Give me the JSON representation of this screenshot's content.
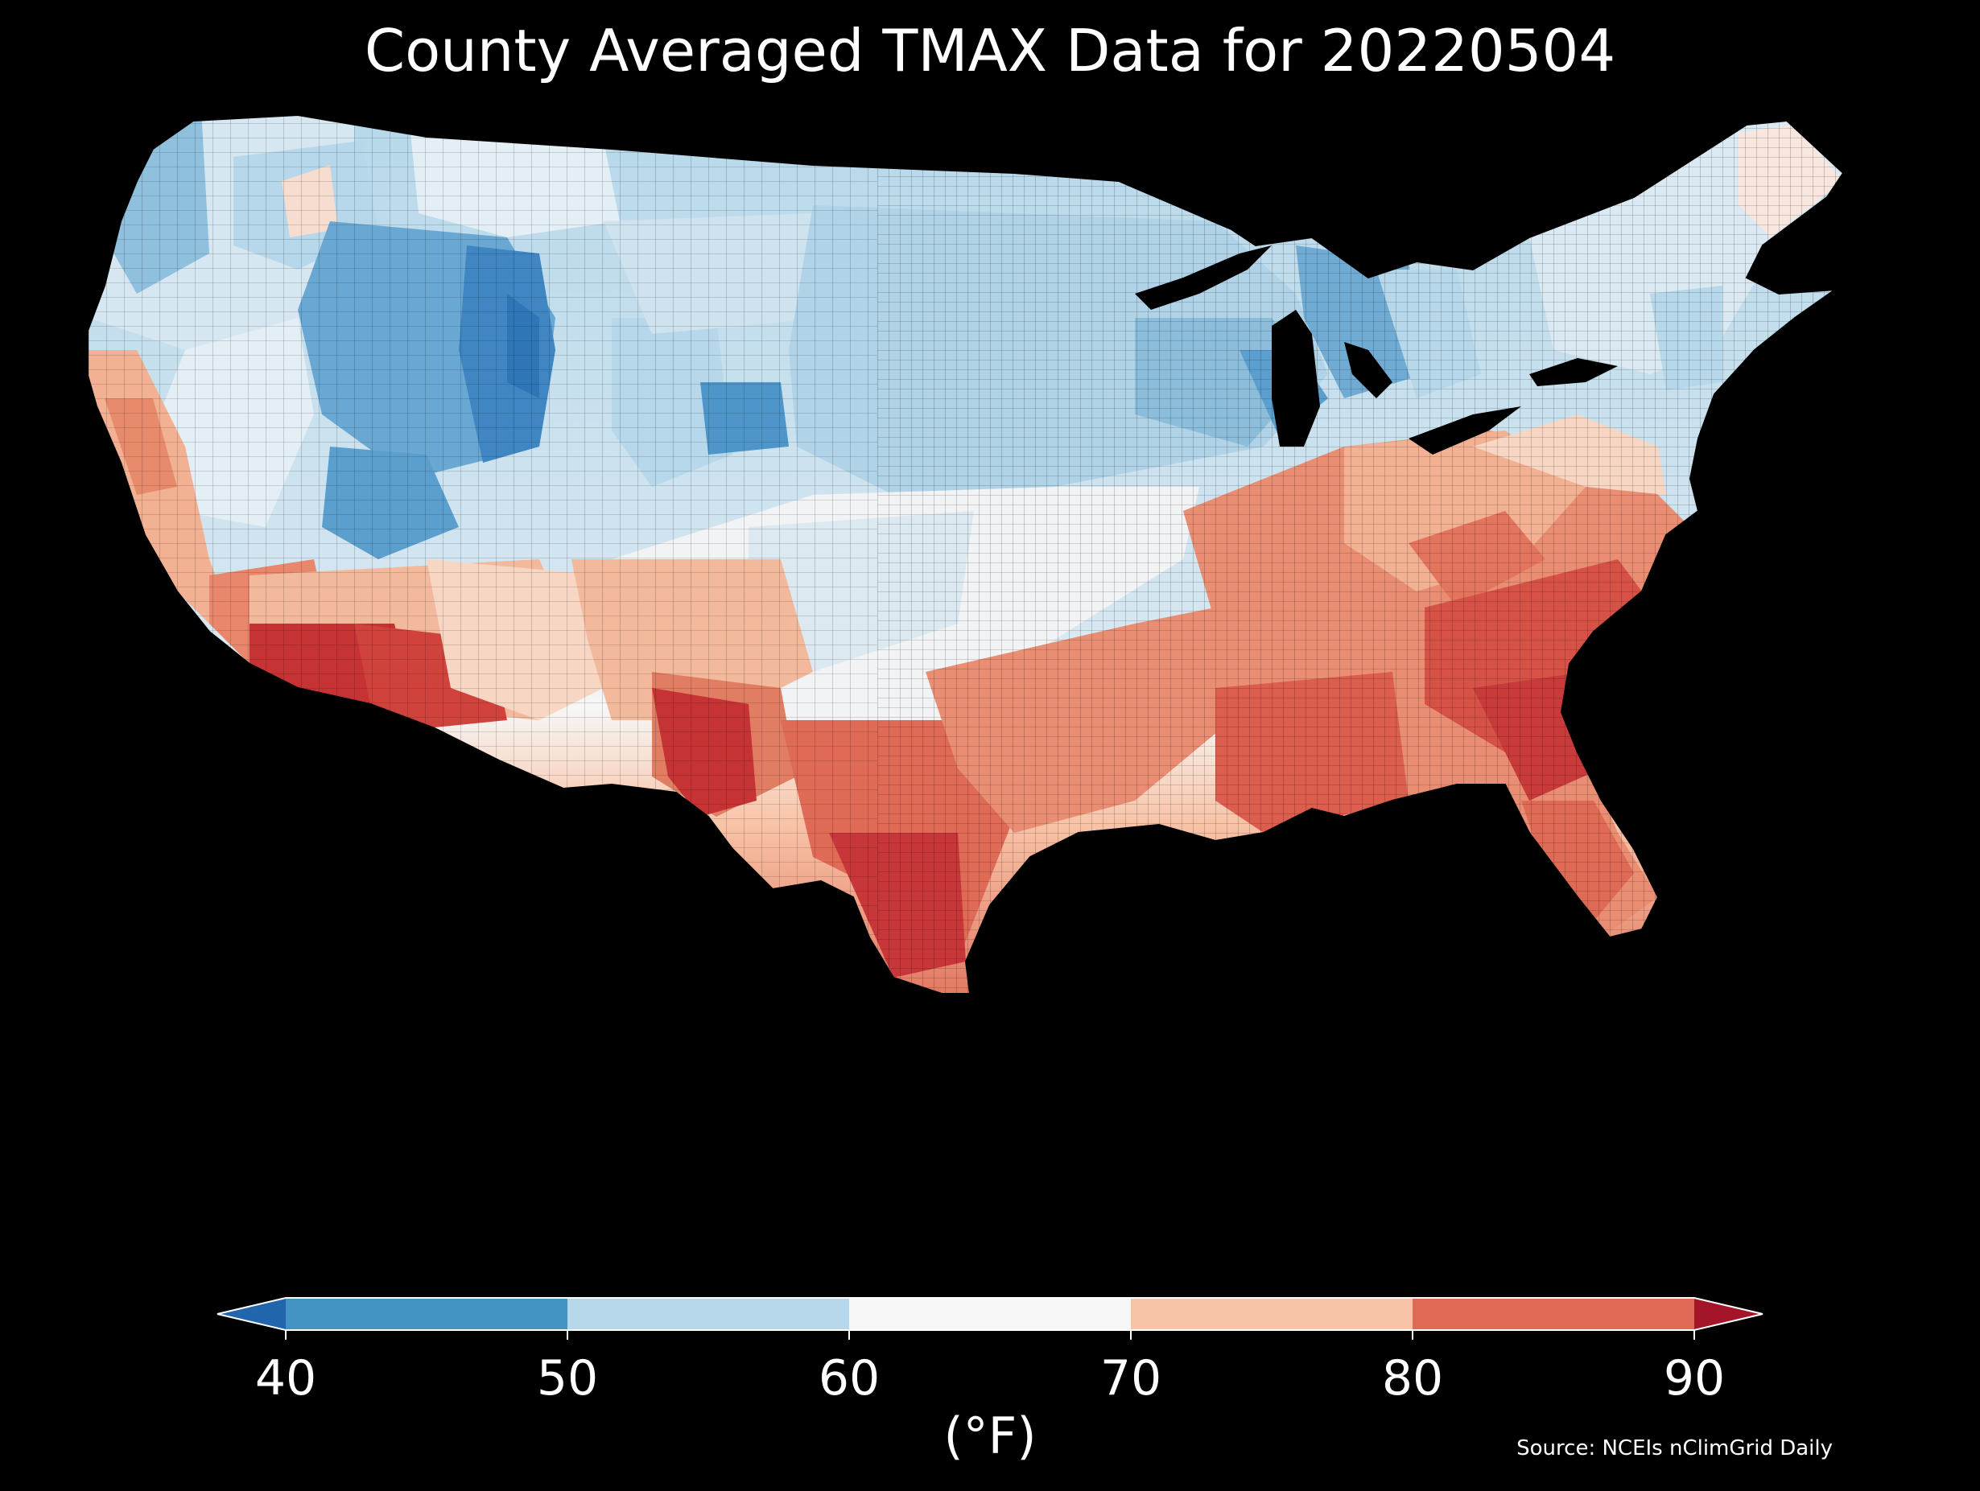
{
  "title": "County Averaged TMAX Data for 20220504",
  "colorbar": {
    "unit_label": "(°F)",
    "ticks": [
      "40",
      "50",
      "60",
      "70",
      "80",
      "90"
    ],
    "bins": [
      {
        "range": "<40",
        "color": "#2166ac"
      },
      {
        "range": "40-50",
        "color": "#4393c3"
      },
      {
        "range": "50-60",
        "color": "#b6d8ea"
      },
      {
        "range": "60-70",
        "color": "#f7f7f7"
      },
      {
        "range": "70-80",
        "color": "#f8c4a8"
      },
      {
        "range": "80-90",
        "color": "#df6a55"
      },
      {
        "range": ">90",
        "color": "#a5152a"
      }
    ]
  },
  "source": "Source: NCEIs nClimGrid Daily",
  "map": {
    "background": "#000000",
    "county_border_color": "#000000"
  }
}
